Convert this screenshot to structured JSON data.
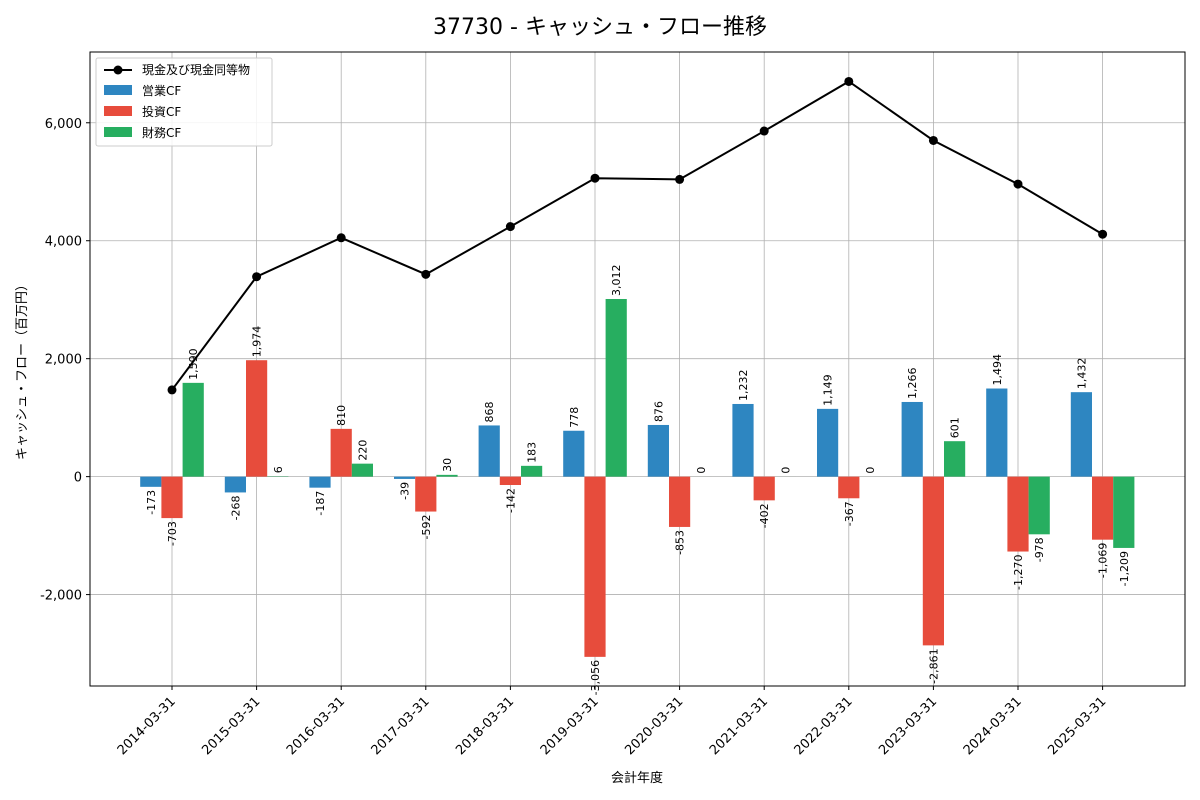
{
  "chart_data": {
    "type": "bar+line",
    "title": "37730 - キャッシュ・フロー推移",
    "xlabel": "会計年度",
    "ylabel": "キャッシュ・フロー（百万円）",
    "ylim": [
      -3550,
      7200
    ],
    "yticks": [
      -2000,
      0,
      2000,
      4000,
      6000
    ],
    "ytick_labels": [
      "-2,000",
      "0",
      "2,000",
      "4,000",
      "6,000"
    ],
    "grid": true,
    "legend_position": "top-left",
    "categories": [
      "2014-03-31",
      "2015-03-31",
      "2016-03-31",
      "2017-03-31",
      "2018-03-31",
      "2019-03-31",
      "2020-03-31",
      "2021-03-31",
      "2022-03-31",
      "2023-03-31",
      "2024-03-31",
      "2025-03-31"
    ],
    "series": [
      {
        "name": "営業CF",
        "type": "bar",
        "color": "#2e86c1",
        "values": [
          -173,
          -268,
          -187,
          -39,
          868,
          778,
          876,
          1232,
          1149,
          1266,
          1494,
          1432
        ],
        "labels": [
          "-173",
          "-268",
          "-187",
          "-39",
          "868",
          "778",
          "876",
          "1,232",
          "1,149",
          "1,266",
          "1,494",
          "1,432"
        ]
      },
      {
        "name": "投資CF",
        "type": "bar",
        "color": "#e74c3c",
        "values": [
          -703,
          1974,
          810,
          -592,
          -142,
          -3056,
          -853,
          -402,
          -367,
          -2861,
          -1270,
          -1069
        ],
        "labels": [
          "-703",
          "1,974",
          "810",
          "-592",
          "-142",
          "-3,056",
          "-853",
          "-402",
          "-367",
          "-2,861",
          "-1,270",
          "-1,069"
        ]
      },
      {
        "name": "財務CF",
        "type": "bar",
        "color": "#27ae60",
        "values": [
          1590,
          6,
          220,
          30,
          183,
          3012,
          0,
          0,
          0,
          601,
          -978,
          -1209
        ],
        "labels": [
          "1,590",
          "6",
          "220",
          "30",
          "183",
          "3,012",
          "0",
          "0",
          "0",
          "601",
          "-978",
          "-1,209"
        ]
      },
      {
        "name": "現金及び現金同等物",
        "type": "line",
        "color": "#000000",
        "values": [
          1470,
          3390,
          4050,
          3430,
          4240,
          5060,
          5040,
          5860,
          6700,
          5700,
          4960,
          4110
        ]
      }
    ]
  }
}
